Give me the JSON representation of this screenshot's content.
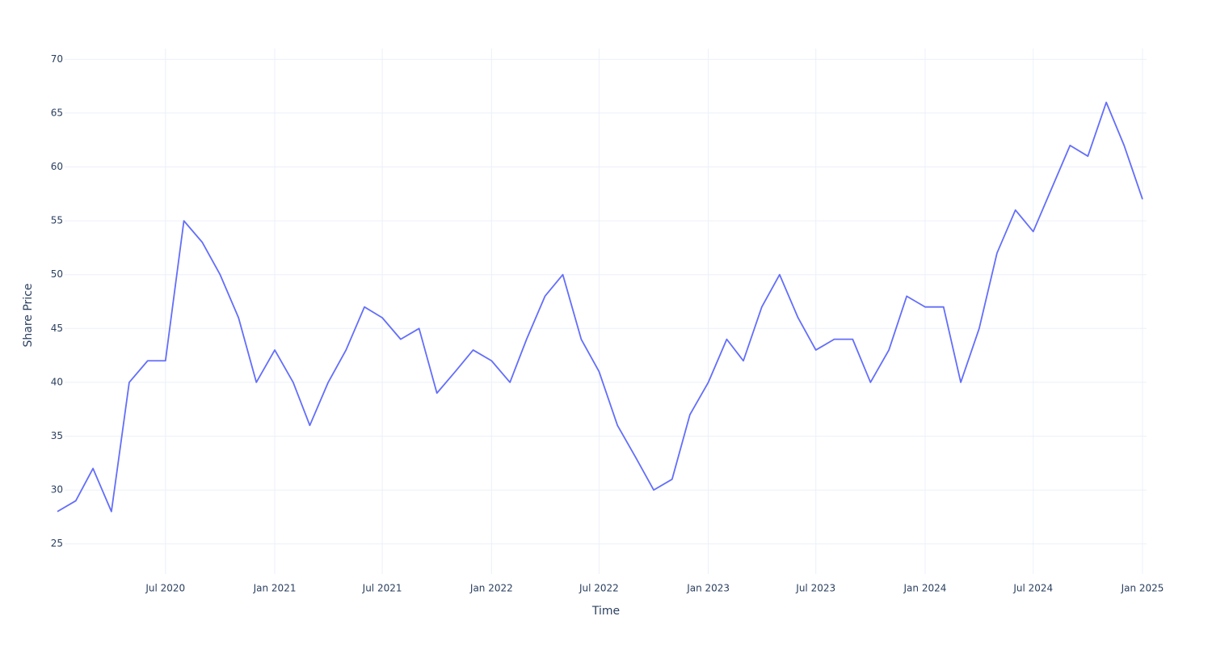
{
  "chart_data": {
    "type": "line",
    "x_label": "Time",
    "y_label": "Share Price",
    "x": [
      "2020-01",
      "2020-02",
      "2020-03",
      "2020-04",
      "2020-05",
      "2020-06",
      "2020-07",
      "2020-08",
      "2020-09",
      "2020-10",
      "2020-11",
      "2020-12",
      "2021-01",
      "2021-02",
      "2021-03",
      "2021-04",
      "2021-05",
      "2021-06",
      "2021-07",
      "2021-08",
      "2021-09",
      "2021-10",
      "2021-11",
      "2021-12",
      "2022-01",
      "2022-02",
      "2022-03",
      "2022-04",
      "2022-05",
      "2022-06",
      "2022-07",
      "2022-08",
      "2022-09",
      "2022-10",
      "2022-11",
      "2022-12",
      "2023-01",
      "2023-02",
      "2023-03",
      "2023-04",
      "2023-05",
      "2023-06",
      "2023-07",
      "2023-08",
      "2023-09",
      "2023-10",
      "2023-11",
      "2023-12",
      "2024-01",
      "2024-02",
      "2024-03",
      "2024-04",
      "2024-05",
      "2024-06",
      "2024-07",
      "2024-08",
      "2024-09",
      "2024-10",
      "2024-11",
      "2024-12",
      "2025-01"
    ],
    "series": [
      {
        "name": "Share Price",
        "color": "#636efa",
        "values": [
          28,
          29,
          32,
          28,
          40,
          42,
          42,
          55,
          53,
          50,
          46,
          40,
          43,
          40,
          36,
          40,
          43,
          47,
          46,
          44,
          45,
          39,
          41,
          43,
          42,
          40,
          44,
          48,
          50,
          44,
          41,
          36,
          33,
          30,
          31,
          37,
          40,
          44,
          42,
          47,
          50,
          46,
          43,
          44,
          44,
          40,
          43,
          48,
          47,
          47,
          40,
          45,
          52,
          56,
          54,
          58,
          62,
          61,
          66,
          62,
          57
        ]
      }
    ],
    "xlim": [
      "2020-01",
      "2025-01"
    ],
    "xticks": [
      {
        "value": "2020-07",
        "label": "Jul 2020"
      },
      {
        "value": "2021-01",
        "label": "Jan 2021"
      },
      {
        "value": "2021-07",
        "label": "Jul 2021"
      },
      {
        "value": "2022-01",
        "label": "Jan 2022"
      },
      {
        "value": "2022-07",
        "label": "Jul 2022"
      },
      {
        "value": "2023-01",
        "label": "Jan 2023"
      },
      {
        "value": "2023-07",
        "label": "Jul 2023"
      },
      {
        "value": "2024-01",
        "label": "Jan 2024"
      },
      {
        "value": "2024-07",
        "label": "Jul 2024"
      },
      {
        "value": "2025-01",
        "label": "Jan 2025"
      }
    ],
    "ylim": [
      22.2,
      71
    ],
    "yticks": [
      25,
      30,
      35,
      40,
      45,
      50,
      55,
      60,
      65,
      70
    ],
    "grid": true
  }
}
